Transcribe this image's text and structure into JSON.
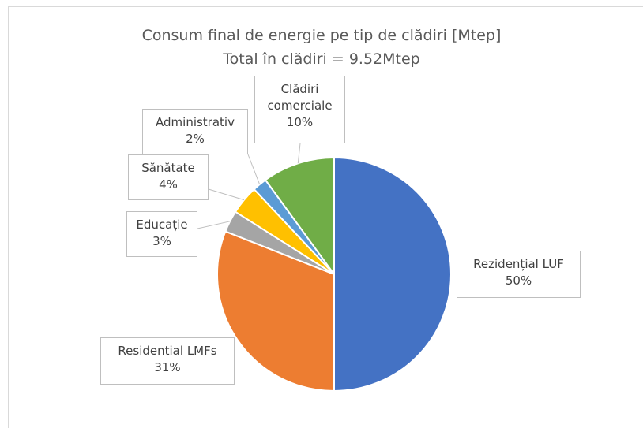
{
  "chart_data": {
    "type": "pie",
    "title": "Consum final de energie pe tip de clădiri [Mtep]",
    "subtitle": "Total în clădiri = 9.52Mtep",
    "categories": [
      "Rezidențial LUF",
      "Residential LMFs",
      "Educație",
      "Sănătate",
      "Administrativ",
      "Clădiri comerciale"
    ],
    "values": [
      50,
      31,
      3,
      4,
      2,
      10
    ],
    "value_labels": [
      "50%",
      "31%",
      "3%",
      "4%",
      "2%",
      "10%"
    ],
    "colors": [
      "#4472c4",
      "#ed7d31",
      "#a5a5a5",
      "#ffc000",
      "#5b9bd5",
      "#70ad47"
    ]
  }
}
